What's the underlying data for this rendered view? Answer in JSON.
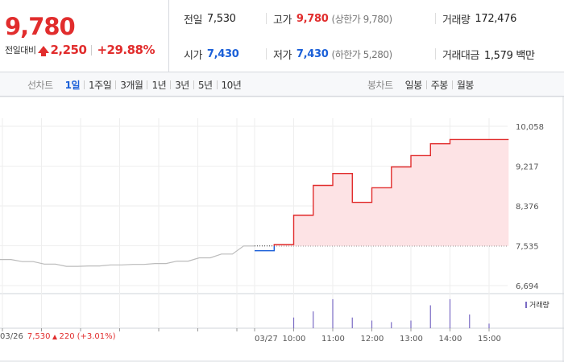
{
  "summary": {
    "price": "9,780",
    "change_label": "전일대비",
    "change_value": "2,250",
    "change_rate": "+29.88%",
    "prev_close": {
      "label": "전일",
      "value": "7,530"
    },
    "high": {
      "label": "고가",
      "value": "9,780",
      "limit": "(상한가 9,780)"
    },
    "volume": {
      "label": "거래량",
      "value": "172,476"
    },
    "open": {
      "label": "시가",
      "value": "7,430"
    },
    "low": {
      "label": "저가",
      "value": "7,430",
      "limit": "(하한가 5,280)"
    },
    "trade_amount": {
      "label": "거래대금",
      "value": "1,579 백만"
    }
  },
  "toolbar": {
    "line_chart_title": "선차트",
    "periods": [
      "1일",
      "1주일",
      "3개월",
      "1년",
      "3년",
      "5년",
      "10년"
    ],
    "active_period": "1일",
    "candle_chart_title": "봉차트",
    "candles": [
      "일봉",
      "주봉",
      "월봉"
    ]
  },
  "colors": {
    "rise": "#e12d2d",
    "fall": "#1a5fd8",
    "volume_bar": "#7a6bc4",
    "area_fill": "#fde3e5"
  },
  "chart_data": {
    "type": "line",
    "y_ticks": [
      "10,058",
      "9,217",
      "8,376",
      "7,535",
      "6,694"
    ],
    "y_tick_values": [
      10058,
      9217,
      8376,
      7535,
      6694
    ],
    "ylim": [
      6694,
      10058
    ],
    "reference_price": 7530,
    "prev_day": {
      "date_label": "03/26",
      "price": "7,530",
      "change": "220",
      "change_rate": "(+3.01%)",
      "values": [
        7244,
        7244,
        7200,
        7200,
        7148,
        7148,
        7100,
        7100,
        7108,
        7108,
        7130,
        7130,
        7140,
        7140,
        7160,
        7160,
        7210,
        7210,
        7280,
        7280,
        7360,
        7360,
        7530,
        7530
      ]
    },
    "x_labels": [
      "03/27",
      "10:00",
      "11:00",
      "12:00",
      "13:00",
      "14:00",
      "15:00"
    ],
    "series": [
      {
        "values": [
          [
            0.0,
            7430
          ],
          [
            0.5,
            7430
          ],
          [
            0.5,
            7560
          ],
          [
            1.0,
            7560
          ],
          [
            1.0,
            8180
          ],
          [
            1.5,
            8180
          ],
          [
            1.5,
            8810
          ],
          [
            2.0,
            8810
          ],
          [
            2.0,
            9060
          ],
          [
            2.5,
            9060
          ],
          [
            2.5,
            8450
          ],
          [
            3.0,
            8450
          ],
          [
            3.0,
            8760
          ],
          [
            3.5,
            8760
          ],
          [
            3.5,
            9200
          ],
          [
            4.0,
            9200
          ],
          [
            4.0,
            9440
          ],
          [
            4.5,
            9440
          ],
          [
            4.5,
            9690
          ],
          [
            5.0,
            9690
          ],
          [
            5.0,
            9780
          ],
          [
            6.5,
            9780
          ]
        ]
      }
    ],
    "volume_series": {
      "name": "거래량",
      "values": [
        [
          1.0,
          0.35
        ],
        [
          1.5,
          0.55
        ],
        [
          2.0,
          0.95
        ],
        [
          2.5,
          0.35
        ],
        [
          3.0,
          0.25
        ],
        [
          3.5,
          0.2
        ],
        [
          4.0,
          0.25
        ],
        [
          4.5,
          0.75
        ],
        [
          5.0,
          0.95
        ],
        [
          5.5,
          0.45
        ],
        [
          6.0,
          0.15
        ]
      ]
    }
  }
}
